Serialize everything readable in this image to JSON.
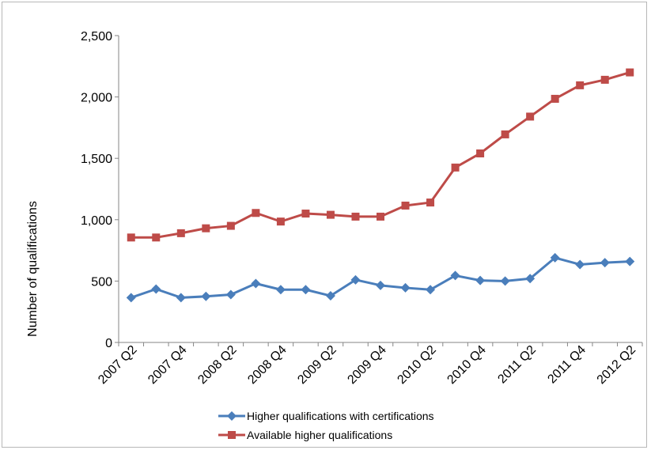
{
  "chart_data": {
    "type": "line",
    "title": "",
    "xlabel": "",
    "ylabel": "Number of qualifications",
    "ylim": [
      0,
      2500
    ],
    "yticks": [
      0,
      500,
      1000,
      1500,
      2000,
      2500
    ],
    "ytick_labels": [
      "0",
      "500",
      "1,000",
      "1,500",
      "2,000",
      "2,500"
    ],
    "categories": [
      "2007 Q2",
      "2007 Q3",
      "2007 Q4",
      "2008 Q1",
      "2008 Q2",
      "2008 Q3",
      "2008 Q4",
      "2009 Q1",
      "2009 Q2",
      "2009 Q3",
      "2009 Q4",
      "2010 Q1",
      "2010 Q2",
      "2010 Q3",
      "2010 Q4",
      "2011 Q1",
      "2011 Q2",
      "2011 Q3",
      "2011 Q4",
      "2012 Q1",
      "2012 Q2"
    ],
    "xtick_labels": [
      "2007 Q2",
      "",
      "2007 Q4",
      "",
      "2008 Q2",
      "",
      "2008 Q4",
      "",
      "2009 Q2",
      "",
      "2009 Q4",
      "",
      "2010 Q2",
      "",
      "2010 Q4",
      "",
      "2011 Q2",
      "",
      "2011 Q4",
      "",
      "2012 Q2"
    ],
    "grid": false,
    "legend_position": "bottom",
    "series": [
      {
        "name": "Higher qualifications with certifications",
        "color": "#4a7ebb",
        "marker": "diamond",
        "values": [
          365,
          435,
          365,
          375,
          390,
          480,
          430,
          430,
          380,
          510,
          465,
          445,
          430,
          545,
          505,
          500,
          520,
          690,
          635,
          650,
          660
        ]
      },
      {
        "name": "Available higher qualifications",
        "color": "#be4b48",
        "marker": "square",
        "values": [
          855,
          855,
          890,
          930,
          950,
          1055,
          985,
          1050,
          1040,
          1025,
          1025,
          1115,
          1140,
          1425,
          1540,
          1695,
          1840,
          1985,
          2095,
          2140,
          2200
        ]
      }
    ]
  }
}
